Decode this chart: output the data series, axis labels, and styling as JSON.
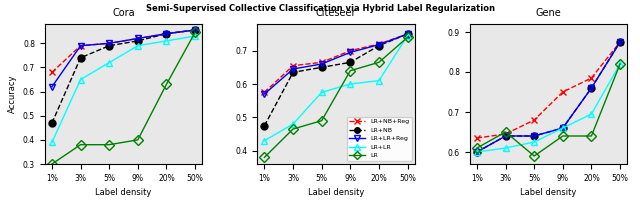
{
  "title": "Semi-Supervised Collective Classification via Hybrid Label Regularization",
  "x_labels": [
    "1%",
    "3%",
    "5%",
    "9%",
    "20%",
    "50%"
  ],
  "x_vals": [
    0,
    1,
    2,
    3,
    4,
    5
  ],
  "datasets": {
    "Cora": {
      "ylim": [
        0.3,
        0.88
      ],
      "yticks": [
        0.3,
        0.4,
        0.5,
        0.6,
        0.7,
        0.8
      ],
      "LR+NB+Reg": [
        0.68,
        0.79,
        0.8,
        0.82,
        0.84,
        0.855
      ],
      "LR+NB": [
        0.47,
        0.74,
        0.79,
        0.81,
        0.84,
        0.855
      ],
      "LR+LR+Reg": [
        0.62,
        0.79,
        0.8,
        0.82,
        0.84,
        0.855
      ],
      "LR+LR": [
        0.39,
        0.65,
        0.72,
        0.79,
        0.81,
        0.83
      ],
      "LR": [
        0.3,
        0.38,
        0.38,
        0.4,
        0.63,
        0.845
      ]
    },
    "Citeseer": {
      "ylim": [
        0.36,
        0.78
      ],
      "yticks": [
        0.4,
        0.5,
        0.6,
        0.7
      ],
      "LR+NB+Reg": [
        0.575,
        0.655,
        0.665,
        0.7,
        0.72,
        0.75
      ],
      "LR+NB": [
        0.475,
        0.635,
        0.65,
        0.665,
        0.715,
        0.75
      ],
      "LR+LR+Reg": [
        0.57,
        0.645,
        0.66,
        0.695,
        0.718,
        0.75
      ],
      "LR+LR": [
        0.43,
        0.48,
        0.575,
        0.6,
        0.61,
        0.745
      ],
      "LR": [
        0.38,
        0.465,
        0.49,
        0.64,
        0.665,
        0.74
      ]
    },
    "Gene": {
      "ylim": [
        0.57,
        0.92
      ],
      "yticks": [
        0.6,
        0.7,
        0.8,
        0.9
      ],
      "LR+NB+Reg": [
        0.635,
        0.645,
        0.68,
        0.75,
        0.785,
        0.875
      ],
      "LR+NB": [
        0.6,
        0.64,
        0.64,
        0.66,
        0.76,
        0.875
      ],
      "LR+LR+Reg": [
        0.6,
        0.64,
        0.64,
        0.66,
        0.76,
        0.875
      ],
      "LR+LR": [
        0.6,
        0.61,
        0.625,
        0.66,
        0.695,
        0.82
      ],
      "LR": [
        0.61,
        0.65,
        0.59,
        0.64,
        0.64,
        0.82
      ]
    }
  },
  "series_styles": {
    "LR+NB+Reg": {
      "color": "red",
      "linestyle": "--",
      "marker": "x",
      "markersize": 5
    },
    "LR+NB": {
      "color": "black",
      "linestyle": "--",
      "marker": "o",
      "markersize": 5
    },
    "LR+LR+Reg": {
      "color": "blue",
      "linestyle": "-",
      "marker": "v",
      "markersize": 5
    },
    "LR+LR": {
      "color": "cyan",
      "linestyle": "-",
      "marker": "^",
      "markersize": 5
    },
    "LR": {
      "color": "green",
      "linestyle": "-",
      "marker": "D",
      "markersize": 5
    }
  },
  "legend_labels": [
    "LR+NB+Reg",
    "LR+NB",
    "LR+LR+Reg",
    "LR+LR",
    "LR"
  ],
  "subplot_titles": [
    "Cora",
    "Citeseer",
    "Gene"
  ],
  "ylabel": "Accuracy",
  "xlabel": "Label density",
  "bg_color": "#e8e8e8"
}
